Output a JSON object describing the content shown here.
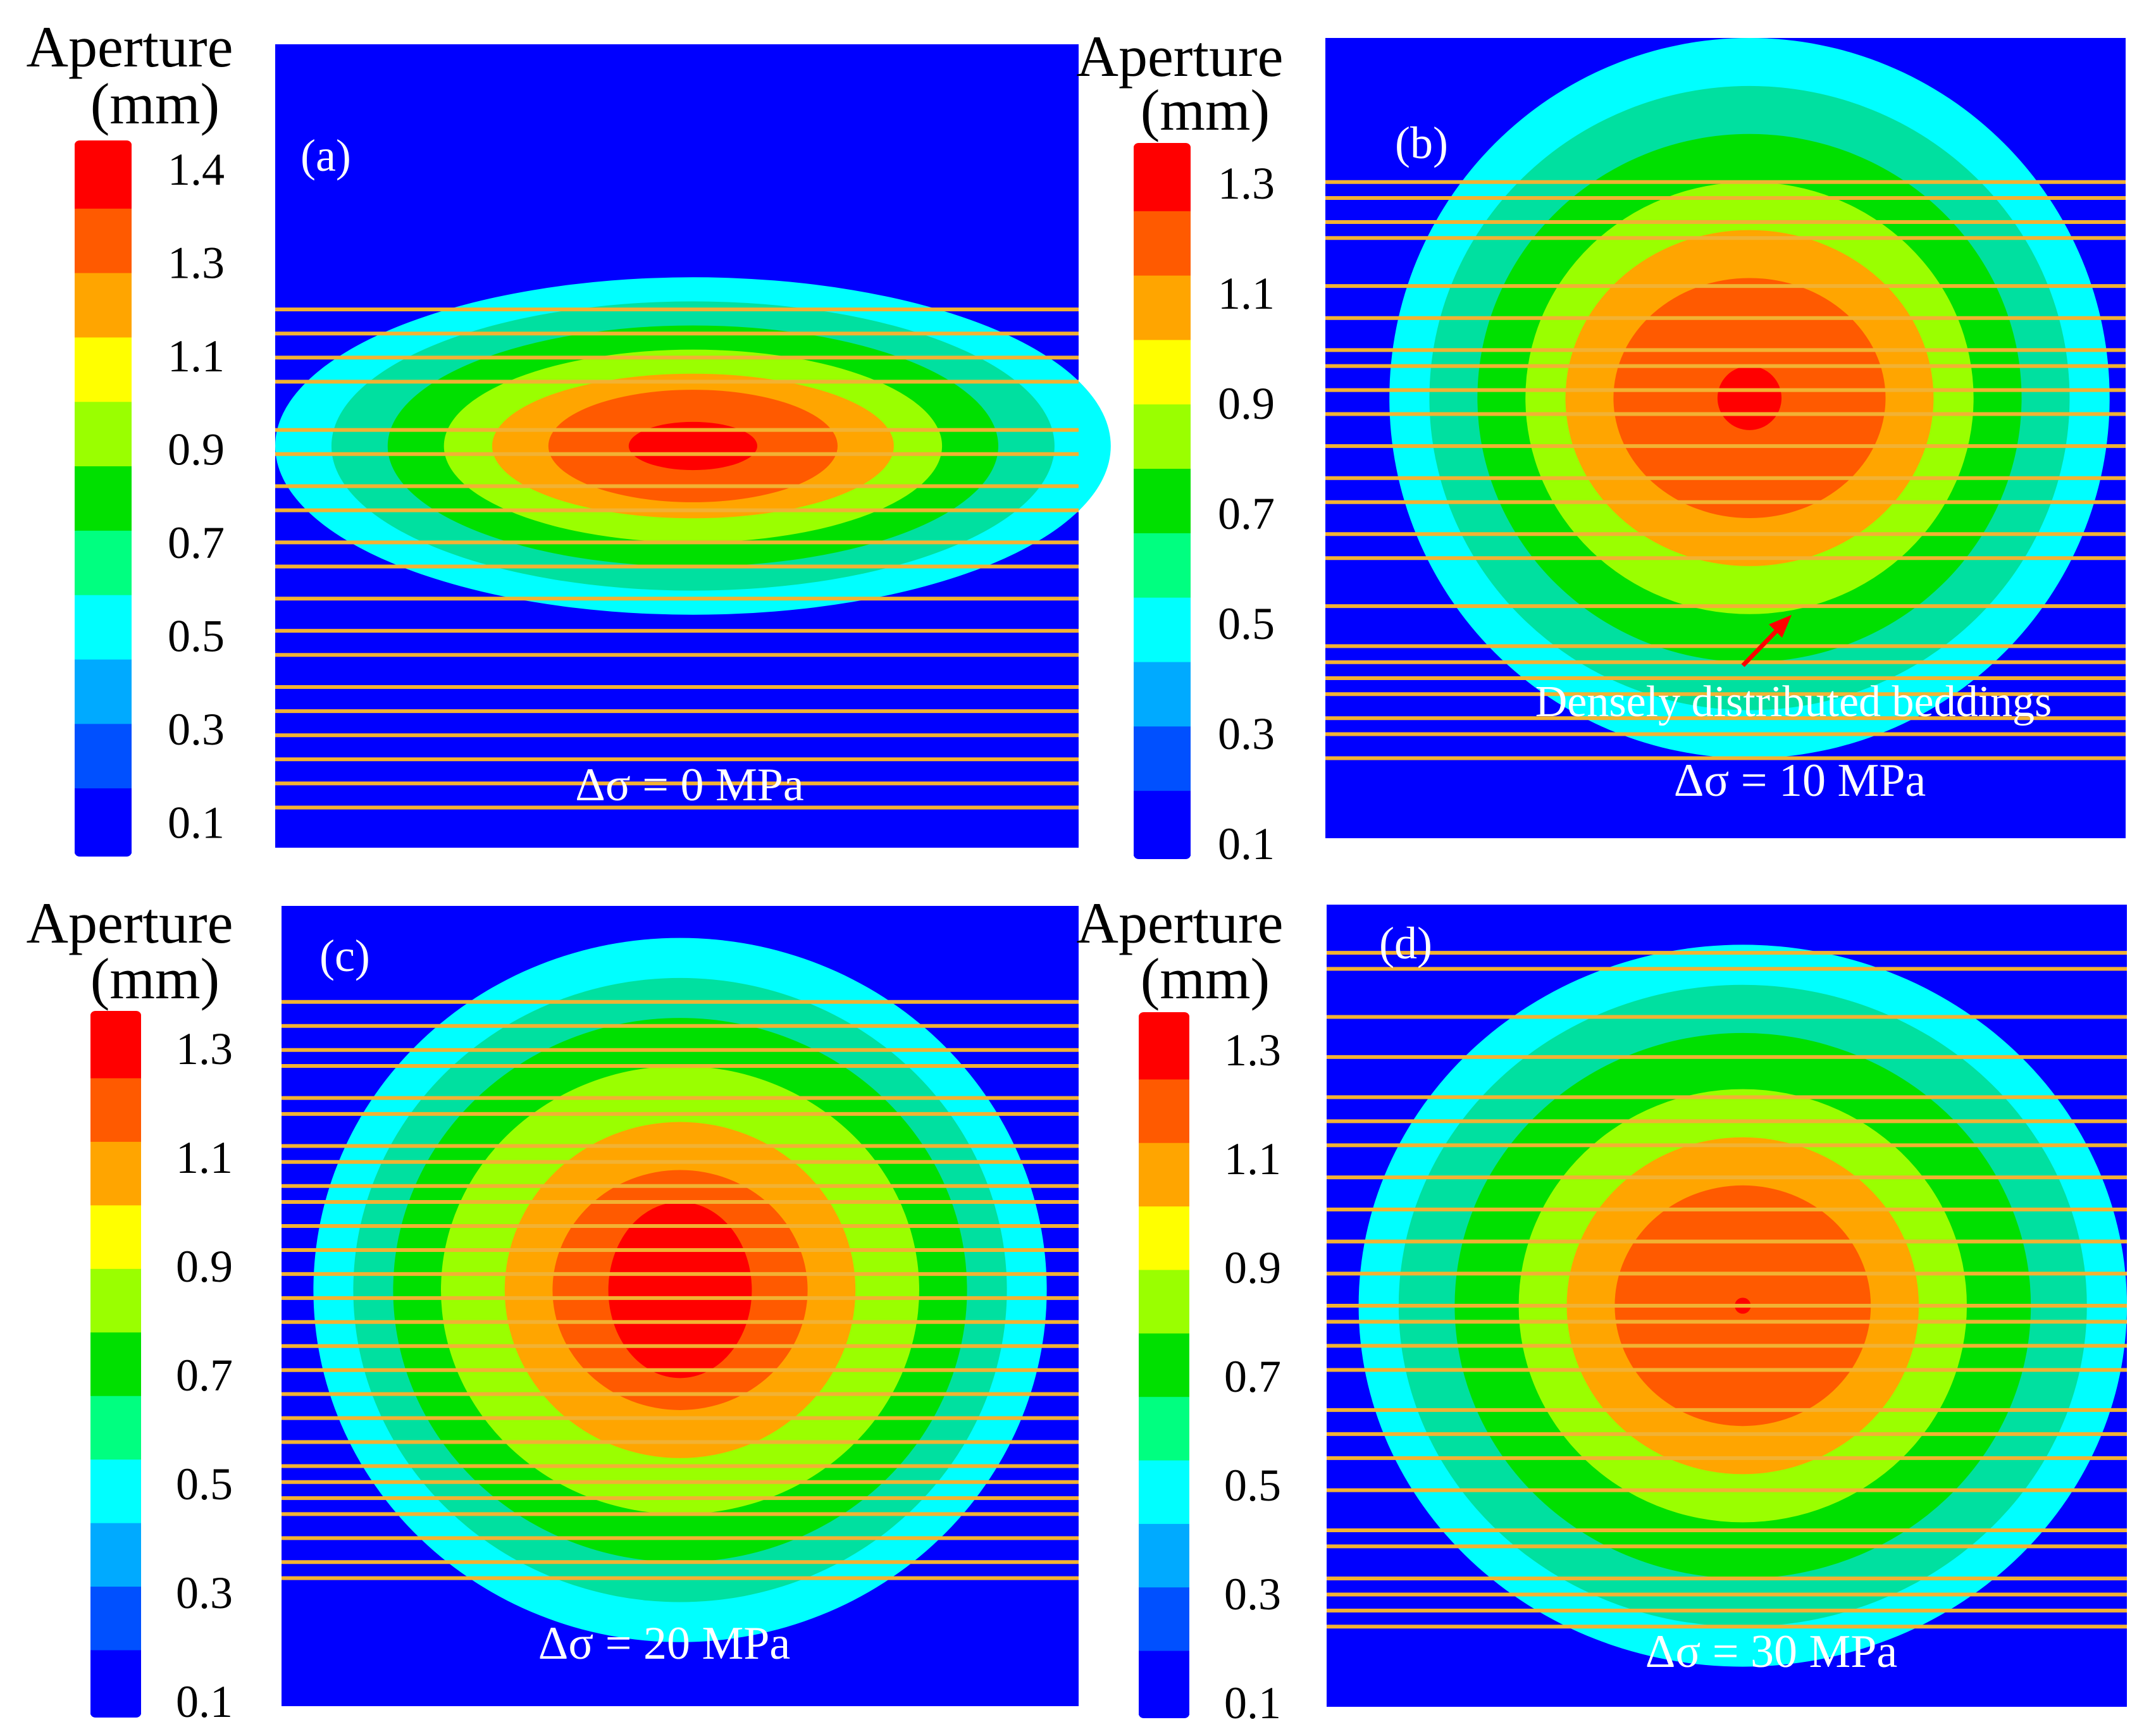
{
  "figure": {
    "colors": {
      "bedding": "#f2b233",
      "background": "#0000ff",
      "annotation_arrow": "#ff0000",
      "text_light": "#ffffff",
      "text_dark": "#000000"
    },
    "annotation": {
      "text": "Densely distributed beddings"
    }
  },
  "chart_data": [
    {
      "type": "heatmap",
      "panel_label": "(a)",
      "title": "Δσ = 0 MPa",
      "colorbar": {
        "title_line1": "Aperture",
        "title_line2": "(mm)",
        "ticks": [
          "1.4",
          "1.3",
          "1.1",
          "0.9",
          "0.7",
          "0.5",
          "0.3",
          "0.1"
        ],
        "colors": [
          "#ff0000",
          "#ff5a00",
          "#ffa500",
          "#ffff00",
          "#9aff00",
          "#00e000",
          "#00ff80",
          "#00ffff",
          "#00aaff",
          "#0050ff",
          "#0000ff"
        ]
      },
      "field": {
        "peak_aperture_mm": 1.4,
        "center": [
          0.52,
          0.5
        ],
        "radius_x": [
          0.52,
          0.45,
          0.38,
          0.31,
          0.25,
          0.18
        ],
        "radius_y": [
          0.21,
          0.18,
          0.15,
          0.12,
          0.09,
          0.07
        ],
        "level_colors": [
          "#00ffff",
          "#00e0a0",
          "#00e000",
          "#9aff00",
          "#ffa500",
          "#ff5a00"
        ],
        "peak_color": "#ff0000",
        "peak_extent": [
          0.08,
          0.03
        ]
      },
      "beddings": [
        0.33,
        0.36,
        0.39,
        0.42,
        0.48,
        0.51,
        0.55,
        0.58,
        0.62,
        0.65,
        0.69,
        0.73,
        0.76,
        0.8,
        0.83,
        0.86,
        0.89,
        0.92,
        0.95
      ]
    },
    {
      "type": "heatmap",
      "panel_label": "(b)",
      "title": "Δσ = 10 MPa",
      "colorbar": {
        "title_line1": "Aperture",
        "title_line2": "(mm)",
        "ticks": [
          "1.3",
          "1.1",
          "0.9",
          "0.7",
          "0.5",
          "0.3",
          "0.1"
        ],
        "colors": [
          "#ff0000",
          "#ff5a00",
          "#ffa500",
          "#ffff00",
          "#9aff00",
          "#00e000",
          "#00ff80",
          "#00ffff",
          "#00aaff",
          "#0050ff",
          "#0000ff"
        ]
      },
      "field": {
        "peak_aperture_mm": 1.3,
        "center": [
          0.53,
          0.45
        ],
        "radius_x": [
          0.45,
          0.4,
          0.34,
          0.28,
          0.23,
          0.17
        ],
        "radius_y": [
          0.45,
          0.39,
          0.33,
          0.27,
          0.21,
          0.15
        ],
        "level_colors": [
          "#00ffff",
          "#00e0a0",
          "#00e000",
          "#9aff00",
          "#ffa500",
          "#ff5a00"
        ],
        "peak_color": "#ff0000",
        "peak_extent": [
          0.04,
          0.04
        ]
      },
      "beddings": [
        0.18,
        0.2,
        0.23,
        0.25,
        0.31,
        0.35,
        0.39,
        0.41,
        0.44,
        0.47,
        0.51,
        0.55,
        0.58,
        0.62,
        0.65,
        0.71,
        0.76,
        0.78,
        0.8,
        0.82,
        0.85,
        0.87,
        0.9
      ]
    },
    {
      "type": "heatmap",
      "panel_label": "(c)",
      "title": "Δσ = 20 MPa",
      "colorbar": {
        "title_line1": "Aperture",
        "title_line2": "(mm)",
        "ticks": [
          "1.3",
          "1.1",
          "0.9",
          "0.7",
          "0.5",
          "0.3",
          "0.1"
        ],
        "colors": [
          "#ff0000",
          "#ff5a00",
          "#ffa500",
          "#ffff00",
          "#9aff00",
          "#00e000",
          "#00ff80",
          "#00ffff",
          "#00aaff",
          "#0050ff",
          "#0000ff"
        ]
      },
      "field": {
        "peak_aperture_mm": 1.3,
        "center": [
          0.5,
          0.48
        ],
        "radius_x": [
          0.46,
          0.41,
          0.36,
          0.3,
          0.22,
          0.16
        ],
        "radius_y": [
          0.44,
          0.39,
          0.34,
          0.28,
          0.21,
          0.15
        ],
        "level_colors": [
          "#00ffff",
          "#00e0a0",
          "#00e000",
          "#9aff00",
          "#ffa500",
          "#ff5a00"
        ],
        "peak_color": "#ff0000",
        "peak_extent": [
          0.09,
          0.11
        ]
      },
      "beddings": [
        0.12,
        0.15,
        0.18,
        0.2,
        0.24,
        0.26,
        0.3,
        0.32,
        0.35,
        0.37,
        0.4,
        0.43,
        0.46,
        0.49,
        0.52,
        0.55,
        0.58,
        0.61,
        0.64,
        0.67,
        0.7,
        0.72,
        0.74,
        0.76,
        0.79,
        0.82,
        0.84
      ]
    },
    {
      "type": "heatmap",
      "panel_label": "(d)",
      "title": "Δσ = 30 MPa",
      "colorbar": {
        "title_line1": "Aperture",
        "title_line2": "(mm)",
        "ticks": [
          "1.3",
          "1.1",
          "0.9",
          "0.7",
          "0.5",
          "0.3",
          "0.1"
        ],
        "colors": [
          "#ff0000",
          "#ff5a00",
          "#ffa500",
          "#ffff00",
          "#9aff00",
          "#00e000",
          "#00ff80",
          "#00ffff",
          "#00aaff",
          "#0050ff",
          "#0000ff"
        ]
      },
      "field": {
        "peak_aperture_mm": 1.3,
        "center": [
          0.52,
          0.5
        ],
        "radius_x": [
          0.48,
          0.43,
          0.36,
          0.28,
          0.22,
          0.16
        ],
        "radius_y": [
          0.45,
          0.4,
          0.34,
          0.27,
          0.21,
          0.15
        ],
        "level_colors": [
          "#00ffff",
          "#00e0a0",
          "#00e000",
          "#9aff00",
          "#ffa500",
          "#ff5a00"
        ],
        "peak_color": "#ff0000",
        "peak_extent": [
          0.01,
          0.01
        ]
      },
      "beddings": [
        0.06,
        0.08,
        0.14,
        0.19,
        0.24,
        0.27,
        0.3,
        0.34,
        0.38,
        0.42,
        0.46,
        0.5,
        0.52,
        0.55,
        0.58,
        0.63,
        0.66,
        0.69,
        0.73,
        0.78,
        0.8,
        0.84,
        0.86,
        0.88,
        0.9
      ]
    }
  ]
}
